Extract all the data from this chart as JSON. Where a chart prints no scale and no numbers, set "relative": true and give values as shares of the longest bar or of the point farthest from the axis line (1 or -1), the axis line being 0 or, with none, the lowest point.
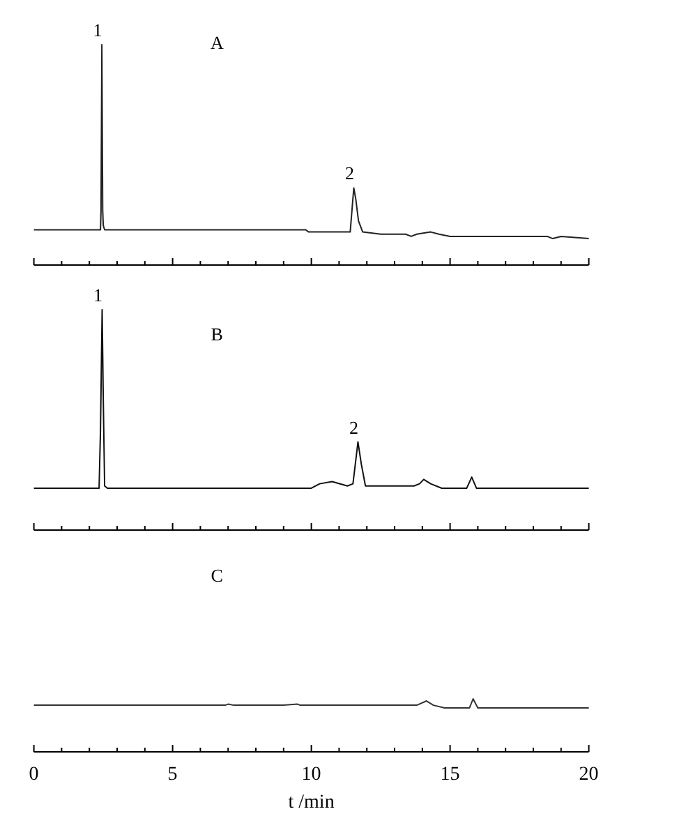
{
  "chart_data": [
    {
      "type": "line",
      "title": "A",
      "relative": true,
      "xlim": [
        0,
        20
      ],
      "tick_labels": false,
      "xticks": [
        0,
        {
          "value": 1,
          "label": null
        },
        {
          "value": 2,
          "label": null
        },
        {
          "value": 3,
          "label": null
        },
        {
          "value": 4,
          "label": null
        },
        5,
        {
          "value": 6,
          "label": null
        },
        {
          "value": 7,
          "label": null
        },
        {
          "value": 8,
          "label": null
        },
        {
          "value": 9,
          "label": null
        },
        10,
        {
          "value": 11,
          "label": null
        },
        {
          "value": 12,
          "label": null
        },
        {
          "value": 13,
          "label": null
        },
        {
          "value": 14,
          "label": null
        },
        15,
        {
          "value": 16,
          "label": null
        },
        {
          "value": 17,
          "label": null
        },
        {
          "value": 18,
          "label": null
        },
        {
          "value": 19,
          "label": null
        },
        20
      ],
      "series": [
        {
          "color": "#222222",
          "x": [
            0,
            2.3,
            2.4,
            2.42,
            2.45,
            2.48,
            2.5,
            2.55,
            2.7,
            9.8,
            9.9,
            11.0,
            11.4,
            11.53,
            11.6,
            11.7,
            11.85,
            12.5,
            13.4,
            13.6,
            13.8,
            14.3,
            14.6,
            15,
            18.5,
            18.7,
            19,
            20
          ],
          "values": [
            0.16,
            0.16,
            0.16,
            0.25,
            1.0,
            0.25,
            0.18,
            0.16,
            0.16,
            0.16,
            0.15,
            0.15,
            0.15,
            0.35,
            0.3,
            0.2,
            0.15,
            0.14,
            0.14,
            0.13,
            0.14,
            0.15,
            0.14,
            0.13,
            0.13,
            0.12,
            0.13,
            0.12
          ]
        }
      ],
      "annotations": [
        {
          "text": "1",
          "x": 2.45,
          "y": 1.0
        },
        {
          "text": "2",
          "x": 11.53,
          "y": 0.35
        }
      ]
    },
    {
      "type": "line",
      "title": "B",
      "relative": true,
      "xlim": [
        0,
        20
      ],
      "tick_labels": false,
      "xticks": [
        0,
        {
          "value": 1,
          "label": null
        },
        {
          "value": 2,
          "label": null
        },
        {
          "value": 3,
          "label": null
        },
        {
          "value": 4,
          "label": null
        },
        5,
        {
          "value": 6,
          "label": null
        },
        {
          "value": 7,
          "label": null
        },
        {
          "value": 8,
          "label": null
        },
        {
          "value": 9,
          "label": null
        },
        10,
        {
          "value": 11,
          "label": null
        },
        {
          "value": 12,
          "label": null
        },
        {
          "value": 13,
          "label": null
        },
        {
          "value": 14,
          "label": null
        },
        15,
        {
          "value": 16,
          "label": null
        },
        {
          "value": 17,
          "label": null
        },
        {
          "value": 18,
          "label": null
        },
        {
          "value": 19,
          "label": null
        },
        20
      ],
      "series": [
        {
          "color": "#111111",
          "x": [
            0,
            2.35,
            2.4,
            2.46,
            2.5,
            2.55,
            2.65,
            10.0,
            10.3,
            10.75,
            11.3,
            11.5,
            11.68,
            11.8,
            11.95,
            12.5,
            13.7,
            13.9,
            14.05,
            14.3,
            14.7,
            15.6,
            15.78,
            15.95,
            20
          ],
          "values": [
            0.19,
            0.19,
            0.45,
            1.0,
            0.6,
            0.2,
            0.19,
            0.19,
            0.21,
            0.22,
            0.2,
            0.21,
            0.4,
            0.3,
            0.2,
            0.2,
            0.2,
            0.21,
            0.23,
            0.21,
            0.19,
            0.19,
            0.24,
            0.19,
            0.19
          ]
        }
      ],
      "annotations": [
        {
          "text": "1",
          "x": 2.46,
          "y": 1.0
        },
        {
          "text": "2",
          "x": 11.68,
          "y": 0.4
        }
      ]
    },
    {
      "type": "line",
      "title": "C",
      "relative": true,
      "xlim": [
        0,
        20
      ],
      "xlabel": "t /min",
      "xticks": [
        0,
        {
          "value": 1,
          "label": null
        },
        {
          "value": 2,
          "label": null
        },
        {
          "value": 3,
          "label": null
        },
        {
          "value": 4,
          "label": null
        },
        5,
        {
          "value": 6,
          "label": null
        },
        {
          "value": 7,
          "label": null
        },
        {
          "value": 8,
          "label": null
        },
        {
          "value": 9,
          "label": null
        },
        10,
        {
          "value": 11,
          "label": null
        },
        {
          "value": 12,
          "label": null
        },
        {
          "value": 13,
          "label": null
        },
        {
          "value": 14,
          "label": null
        },
        15,
        {
          "value": 16,
          "label": null
        },
        {
          "value": 17,
          "label": null
        },
        {
          "value": 18,
          "label": null
        },
        {
          "value": 19,
          "label": null
        },
        20
      ],
      "series": [
        {
          "color": "#333333",
          "x": [
            0,
            6.9,
            7.0,
            7.2,
            9.0,
            9.5,
            9.6,
            13.8,
            14.15,
            14.4,
            14.8,
            15.7,
            15.83,
            16.0,
            20
          ],
          "values": [
            0.88,
            0.88,
            0.9,
            0.88,
            0.88,
            0.9,
            0.88,
            0.88,
            0.96,
            0.88,
            0.83,
            0.83,
            1.0,
            0.83,
            0.83
          ]
        }
      ]
    }
  ]
}
